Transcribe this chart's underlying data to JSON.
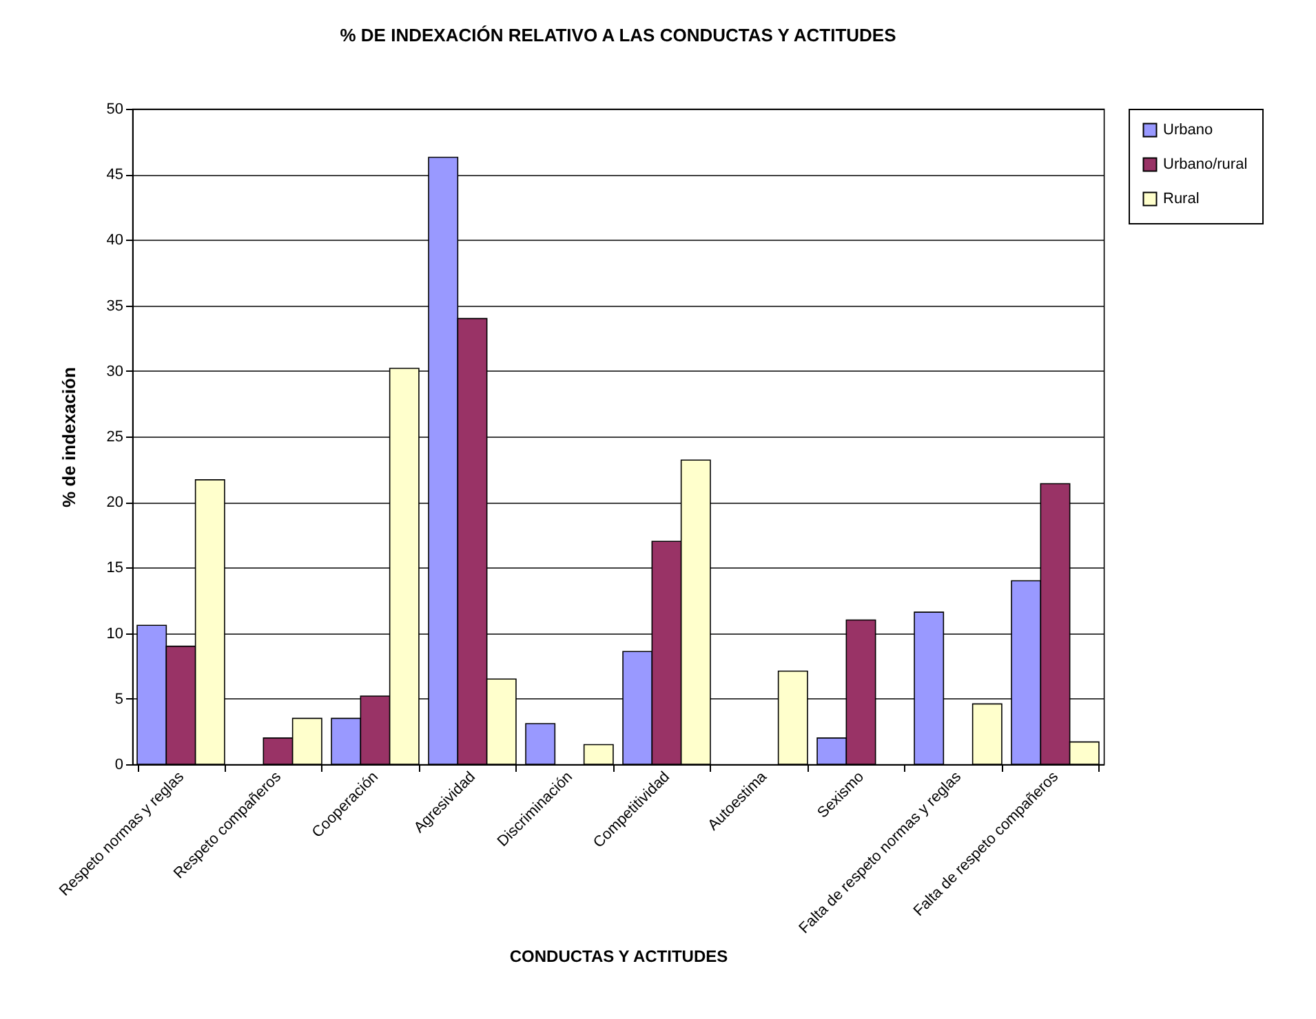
{
  "chart_data": {
    "type": "bar",
    "title": "% DE INDEXACIÓN RELATIVO A LAS CONDUCTAS Y ACTITUDES",
    "xlabel": "CONDUCTAS  Y ACTITUDES",
    "ylabel": "% de indexación",
    "categories": [
      "Respeto normas y reglas",
      "Respeto compañeros",
      "Cooperación",
      "Agresividad",
      "Discriminación",
      "Competitividad",
      "Autoestima",
      "Sexismo",
      "Falta de respeto normas y reglas",
      "Falta de respeto compañeros"
    ],
    "series": [
      {
        "name": "Urbano",
        "color": "#9999ff",
        "values": [
          10.6,
          0,
          3.5,
          46.3,
          3.1,
          8.6,
          0,
          2,
          11.6,
          14
        ]
      },
      {
        "name": "Urbano/rural",
        "color": "#993366",
        "values": [
          9,
          2,
          5.2,
          34,
          0,
          17,
          0,
          11,
          0,
          21.4
        ]
      },
      {
        "name": "Rural",
        "color": "#ffffcc",
        "values": [
          21.7,
          3.5,
          30.2,
          6.5,
          1.5,
          23.2,
          7.1,
          0,
          4.6,
          1.7
        ]
      }
    ],
    "ylim": [
      0,
      50
    ],
    "yticks": [
      0,
      5,
      10,
      15,
      20,
      25,
      30,
      35,
      40,
      45,
      50
    ],
    "grid": "y",
    "legend": "right"
  }
}
